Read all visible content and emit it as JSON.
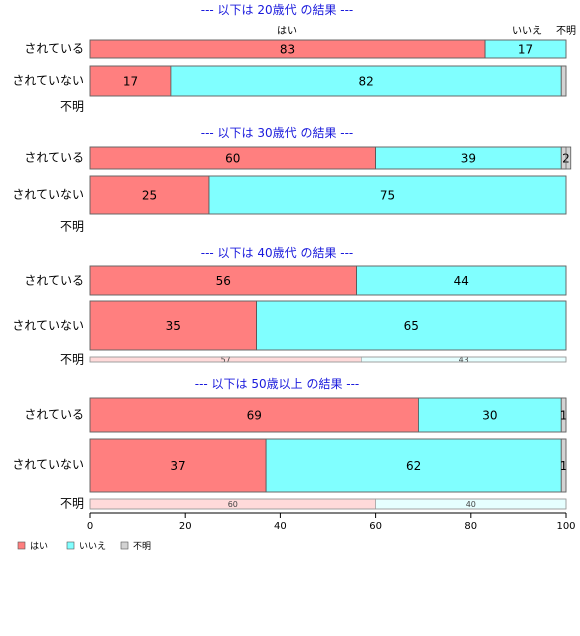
{
  "chart_data": {
    "type": "bar",
    "orientation": "horizontal",
    "stacked": true,
    "xlim": [
      0,
      100
    ],
    "xticks": [
      "0",
      "20",
      "40",
      "60",
      "80",
      "100"
    ],
    "series_names": [
      "はい",
      "いいえ",
      "不明"
    ],
    "colors": {
      "yes": "#ff7f7f",
      "no": "#80ffff",
      "unknown": "#d3d3d3",
      "yes_light": "#ffdada",
      "no_light": "#e6ffff"
    },
    "top_labels": [
      "はい",
      "いいえ",
      "不明"
    ],
    "groups": [
      {
        "title": "--- 以下は 20歳代 の結果 ---",
        "rows": [
          {
            "label": "されている",
            "values": [
              83,
              17,
              0
            ],
            "labels": [
              "83",
              "17",
              ""
            ]
          },
          {
            "label": "されていない",
            "values": [
              17,
              82,
              1
            ],
            "labels": [
              "17",
              "82",
              ""
            ]
          },
          {
            "label": "不明",
            "values": [
              0,
              0,
              0
            ],
            "labels": [
              "",
              "",
              ""
            ]
          }
        ]
      },
      {
        "title": "--- 以下は 30歳代 の結果 ---",
        "rows": [
          {
            "label": "されている",
            "values": [
              60,
              39,
              2
            ],
            "labels": [
              "60",
              "39",
              "2"
            ]
          },
          {
            "label": "されていない",
            "values": [
              25,
              75,
              0
            ],
            "labels": [
              "25",
              "75",
              ""
            ]
          },
          {
            "label": "不明",
            "values": [
              0,
              0,
              0
            ],
            "labels": [
              "",
              "",
              ""
            ]
          }
        ]
      },
      {
        "title": "--- 以下は 40歳代 の結果 ---",
        "rows": [
          {
            "label": "されている",
            "values": [
              56,
              44,
              0
            ],
            "labels": [
              "56",
              "44",
              ""
            ]
          },
          {
            "label": "されていない",
            "values": [
              35,
              65,
              0
            ],
            "labels": [
              "35",
              "65",
              ""
            ]
          },
          {
            "label": "不明",
            "values": [
              57,
              43,
              0
            ],
            "labels": [
              "57",
              "43",
              ""
            ]
          }
        ]
      },
      {
        "title": "--- 以下は 50歳以上 の結果 ---",
        "rows": [
          {
            "label": "されている",
            "values": [
              69,
              30,
              1
            ],
            "labels": [
              "69",
              "30",
              "1"
            ]
          },
          {
            "label": "されていない",
            "values": [
              37,
              62,
              1
            ],
            "labels": [
              "37",
              "62",
              "1"
            ]
          },
          {
            "label": "不明",
            "values": [
              60,
              40,
              0
            ],
            "labels": [
              "60",
              "40",
              ""
            ]
          }
        ]
      }
    ],
    "legend": {
      "position": "bottom-left",
      "items": [
        "はい",
        "いいえ",
        "不明"
      ]
    }
  }
}
